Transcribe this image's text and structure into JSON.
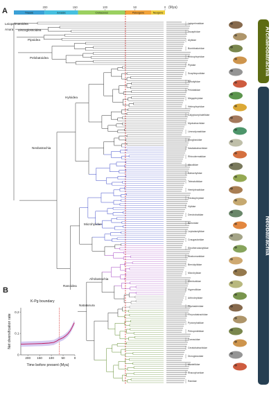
{
  "panel_a": {
    "label": "A",
    "mya_unit": "(Mya)",
    "periods": [
      {
        "name": "Triassic",
        "start": 252,
        "end": 201,
        "color": "#3aa0d6"
      },
      {
        "name": "Jurassic",
        "start": 201,
        "end": 145,
        "color": "#46c0e0"
      },
      {
        "name": "Cretaceous",
        "start": 145,
        "end": 66,
        "color": "#9bd060"
      },
      {
        "name": "Paleogene",
        "start": 66,
        "end": 23,
        "color": "#f2a33a"
      },
      {
        "name": "Neogene",
        "start": 23,
        "end": 0,
        "color": "#f0d040"
      }
    ],
    "time_ticks": [
      "200",
      "150",
      "100",
      "50",
      "0"
    ],
    "kpg_line_mya": 66,
    "clades": [
      {
        "name": "Leiopelmatoidea"
      },
      {
        "name": "Anura"
      },
      {
        "name": "Discoglossoidea"
      },
      {
        "name": "Pipoidea"
      },
      {
        "name": "Pelobatoidea"
      },
      {
        "name": "Neobatrachia"
      },
      {
        "name": "Hyloidea"
      },
      {
        "name": "Microhylidae"
      },
      {
        "name": "Ranoidea"
      },
      {
        "name": "Afrobatrachia"
      },
      {
        "name": "Natatanura"
      }
    ],
    "families": [
      "Leiopelmatidae",
      "Ascaphidae",
      "Alytidae",
      "Bombinatoridae",
      "Rhinophrynidae",
      "Pipidae",
      "Scaphiopodidae",
      "Pelodytidae",
      "Pelobatidae",
      "Megophryidae",
      "Heleophrynidae",
      "Calyptocephalellidae",
      "Myobatrachidae",
      "Limnodynastidae",
      "Sooglossidae",
      "Nasikabatrachidae",
      "Rhinodermatidae",
      "Alsodidae",
      "Batrachylidae",
      "Telmatobiidae",
      "Hemiphractidae",
      "Ceratophryidae",
      "Hylidae",
      "Dendrobatidae",
      "Bufonidae",
      "Leptodactylidae",
      "Craugastoridae",
      "Eleutherodactylidae",
      "Strabomantidae",
      "Brevicipitidae",
      "Microhylidae",
      "Hemisotidae",
      "Hyperoliidae",
      "Arthroleptidae",
      "Ptychadenidae",
      "Phrynobatrachidae",
      "Pyxicephalidae",
      "Petropedetidae",
      "Conrauidae",
      "Ceratobatrachidae",
      "Dicroglossidae",
      "Mantellidae",
      "Rhacophoridae",
      "Ranidae"
    ],
    "side_labels": {
      "archaeobatrachia": "Archaeobatrachia",
      "neobatrachia": "Neobatrachia"
    }
  },
  "panel_b": {
    "label": "B",
    "annotation": "K-Pg boundary",
    "chart_data": {
      "type": "line",
      "xlabel": "Time before present (Mya)",
      "ylabel": "Net diversification rate",
      "xlim": [
        230,
        0
      ],
      "ylim": [
        0,
        0.22
      ],
      "x_ticks": [
        "200",
        "150",
        "100",
        "50",
        "0"
      ],
      "y_ticks": [
        "0",
        "0.1",
        "0.2"
      ],
      "kpg_mya": 66,
      "series": [
        {
          "name": "",
          "x": [
            230,
            200,
            170,
            140,
            110,
            90,
            75,
            68,
            60,
            50,
            40,
            30,
            20,
            12,
            6,
            2
          ],
          "y": [
            0.05,
            0.051,
            0.052,
            0.053,
            0.055,
            0.058,
            0.066,
            0.072,
            0.075,
            0.08,
            0.088,
            0.098,
            0.112,
            0.128,
            0.142,
            0.15
          ]
        }
      ]
    }
  },
  "colors": {
    "hyloidea": "#3b48c8",
    "microhylidae": "#a23fc0",
    "natatanura": "#5d8a2a",
    "afrobatrachia": "#7a7a7a",
    "kpg": "#d42020",
    "archaeo_band": "#5c6b12",
    "neo_band": "#263f52"
  }
}
